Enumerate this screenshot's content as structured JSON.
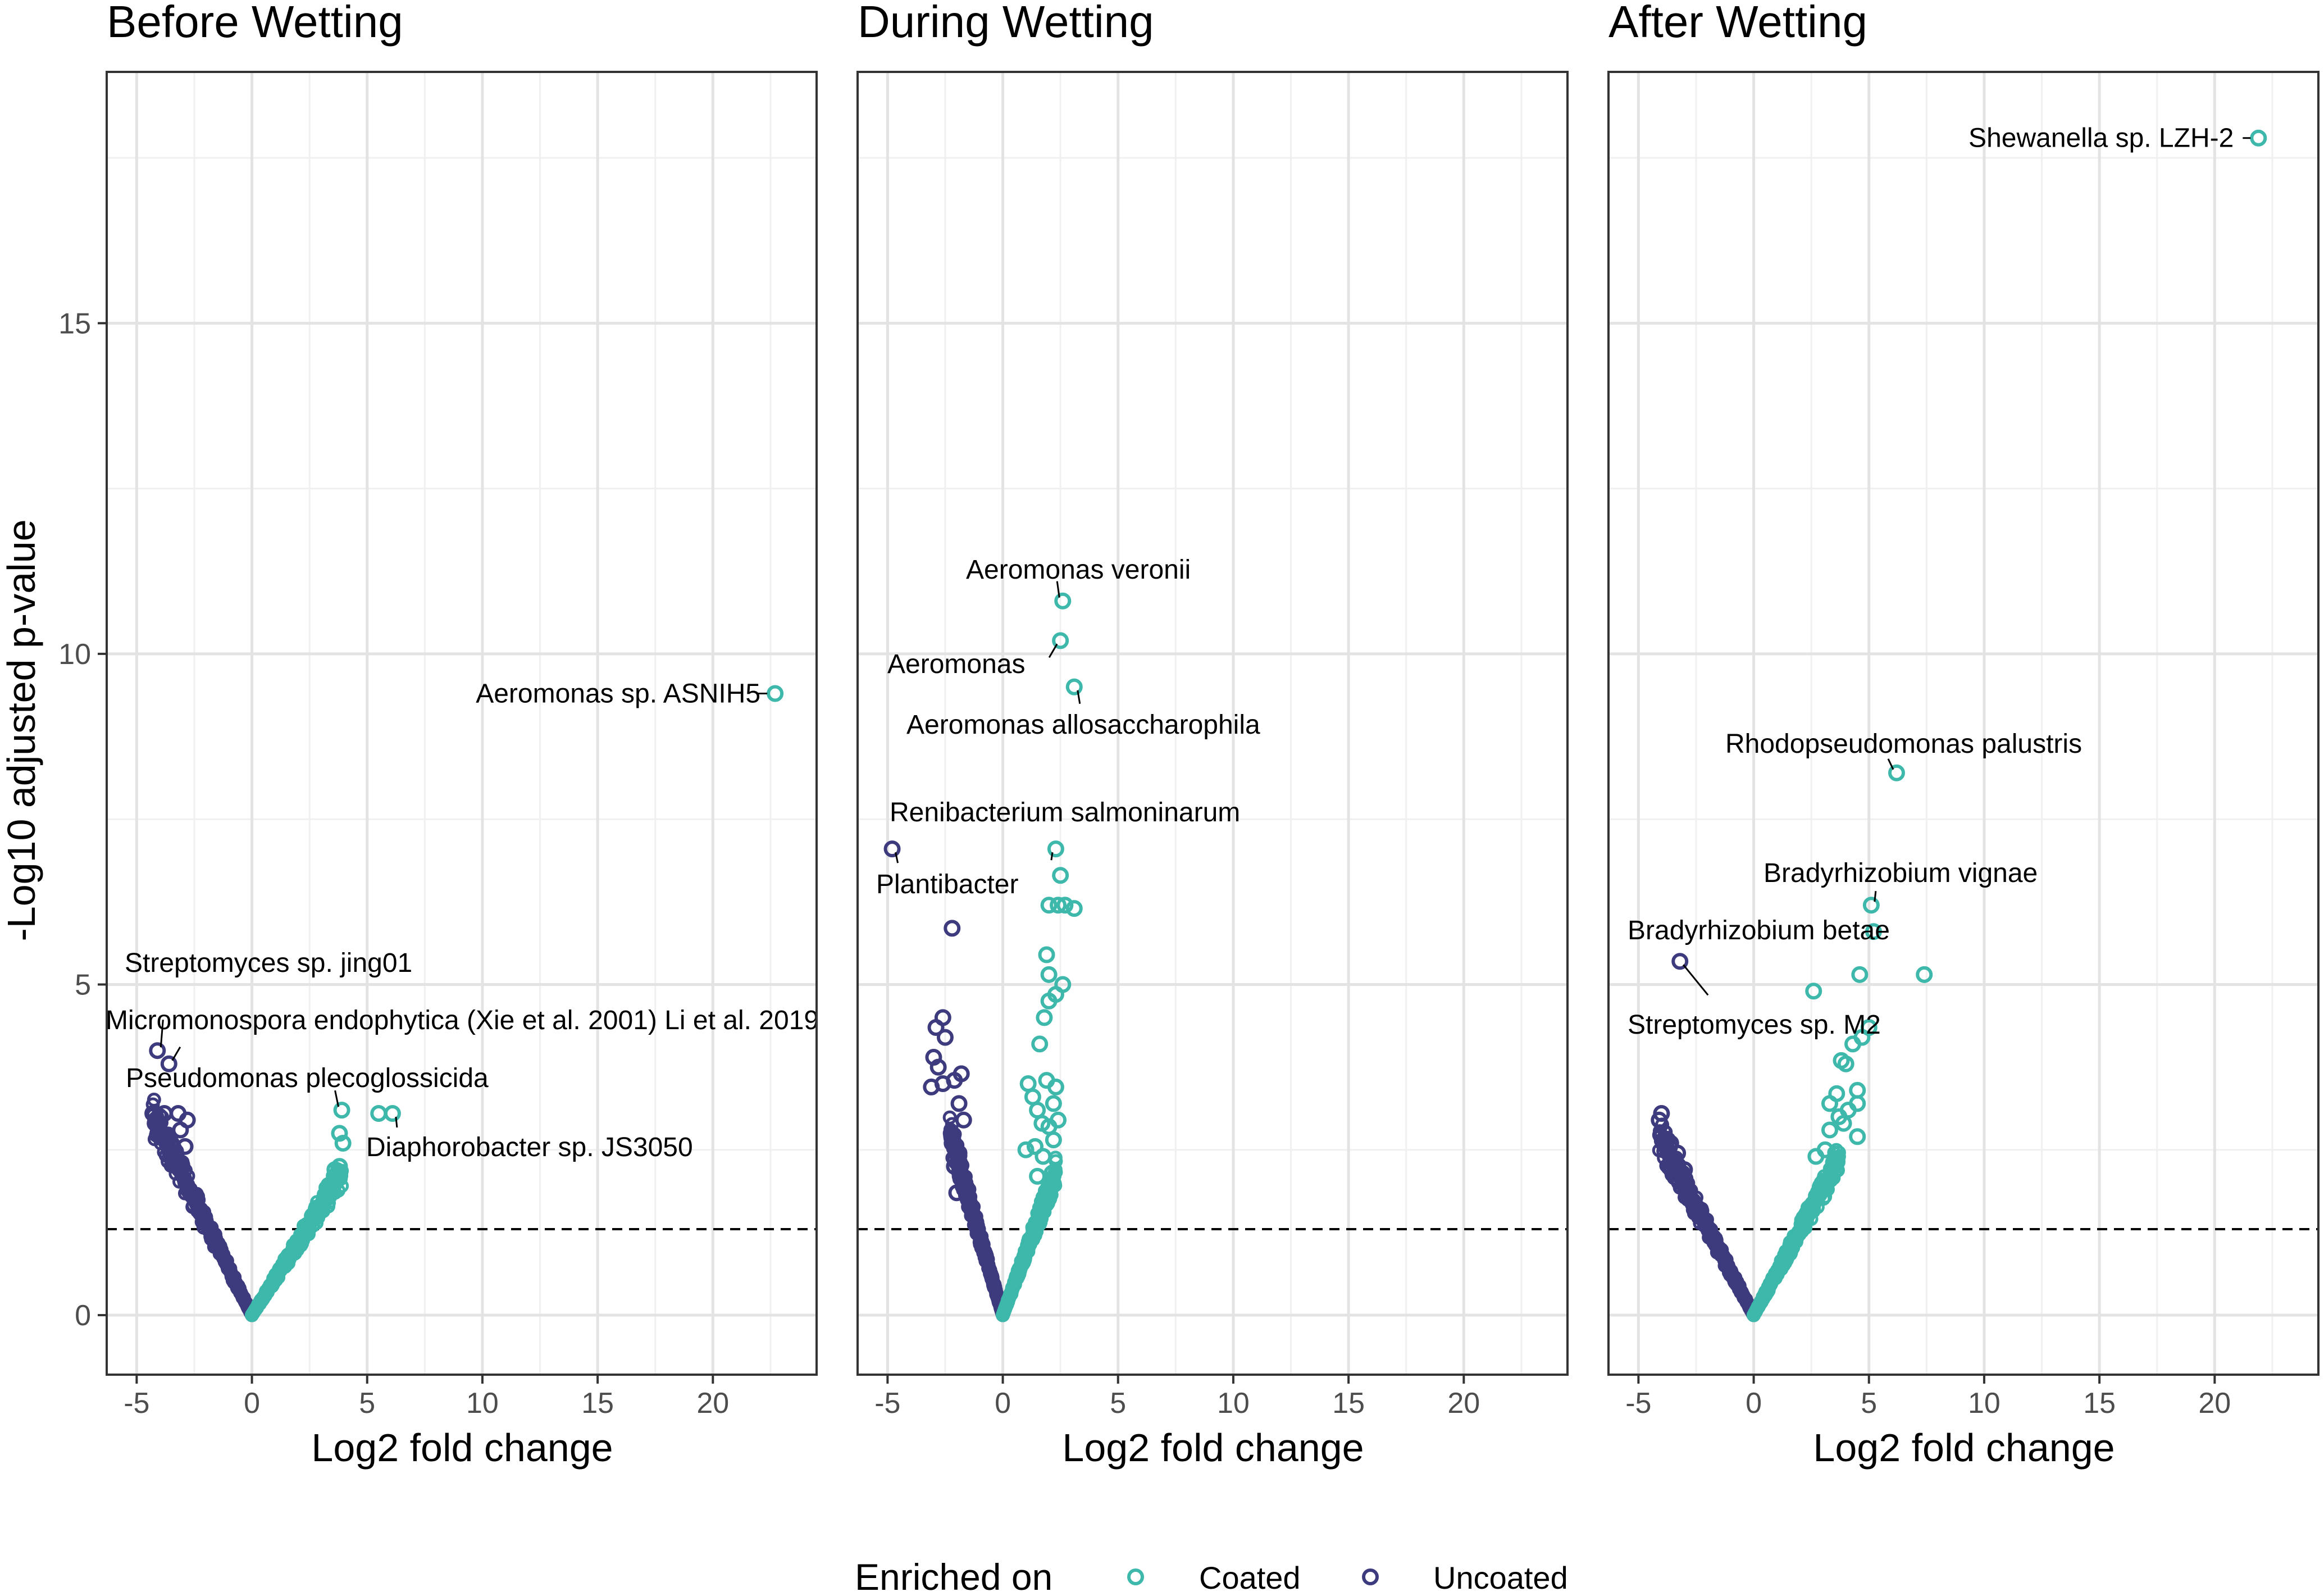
{
  "chart_data": {
    "type": "scatter",
    "subtype": "volcano",
    "shared": {
      "xlabel": "Log2 fold change",
      "ylabel": "-Log10 adjusted p-value",
      "xlim": [
        -6.3,
        24.5
      ],
      "ylim": [
        -0.9,
        18.8
      ],
      "x_ticks": [
        -5,
        0,
        5,
        10,
        15,
        20
      ],
      "x_tick_labels": [
        "-5",
        "0",
        "5",
        "10",
        "15",
        "20"
      ],
      "y_ticks": [
        0,
        5,
        10,
        15
      ],
      "y_tick_labels": [
        "0",
        "5",
        "10",
        "15"
      ],
      "threshold_y": 1.3,
      "threshold_style": "dashed",
      "grid": true
    },
    "legend": {
      "title": "Enriched on",
      "position": "bottom",
      "entries": [
        {
          "key": "coated",
          "label": "Coated",
          "color": "#3db8ab"
        },
        {
          "key": "uncoated",
          "label": "Uncoated",
          "color": "#3d3b7d"
        }
      ]
    },
    "panels": [
      {
        "title": "Before Wetting",
        "curves": {
          "uncoated_xmin": -4.3,
          "uncoated_a": 0.7,
          "coated_xmax": 3.9,
          "coated_a": 0.55
        },
        "highlights": [
          {
            "x": 22.7,
            "y": 9.4,
            "group": "coated",
            "label": "Aeromonas sp. ASNIH5"
          },
          {
            "x": -4.1,
            "y": 4.0,
            "group": "uncoated",
            "label": "Streptomyces sp. jing01"
          },
          {
            "x": -3.6,
            "y": 3.8,
            "group": "uncoated",
            "label": "Micromonospora endophytica (Xie et al. 2001) Li et al. 2019"
          },
          {
            "x": 3.9,
            "y": 3.1,
            "group": "coated",
            "label": "Pseudomonas plecoglossicida"
          },
          {
            "x": 6.1,
            "y": 3.05,
            "group": "coated",
            "label": "Diaphorobacter sp. JS3050"
          },
          {
            "x": 5.5,
            "y": 3.05,
            "group": "coated"
          },
          {
            "x": 3.8,
            "y": 2.75,
            "group": "coated"
          },
          {
            "x": 3.95,
            "y": 2.6,
            "group": "coated"
          },
          {
            "x": 3.6,
            "y": 2.2,
            "group": "coated"
          },
          {
            "x": 3.8,
            "y": 2.25,
            "group": "coated"
          },
          {
            "x": -4.3,
            "y": 3.05,
            "group": "uncoated"
          },
          {
            "x": -3.8,
            "y": 3.05,
            "group": "uncoated"
          },
          {
            "x": -3.2,
            "y": 3.05,
            "group": "uncoated"
          },
          {
            "x": -2.8,
            "y": 2.95,
            "group": "uncoated"
          },
          {
            "x": -4.2,
            "y": 2.9,
            "group": "uncoated"
          },
          {
            "x": -3.1,
            "y": 2.8,
            "group": "uncoated"
          },
          {
            "x": -2.9,
            "y": 2.55,
            "group": "uncoated"
          },
          {
            "x": -3.5,
            "y": 2.6,
            "group": "uncoated"
          },
          {
            "x": -4.0,
            "y": 2.7,
            "group": "uncoated"
          }
        ]
      },
      {
        "title": "During Wetting",
        "curves": {
          "uncoated_xmin": -2.3,
          "uncoated_a": 1.2,
          "coated_xmax": 2.3,
          "coated_a": 0.95
        },
        "highlights": [
          {
            "x": 2.6,
            "y": 10.8,
            "group": "coated",
            "label": "Aeromonas veronii"
          },
          {
            "x": 2.5,
            "y": 10.2,
            "group": "coated",
            "label": "Aeromonas"
          },
          {
            "x": 3.1,
            "y": 9.5,
            "group": "coated",
            "label": "Aeromonas allosaccharophila"
          },
          {
            "x": 2.3,
            "y": 7.05,
            "group": "coated",
            "label": "Renibacterium salmoninarum"
          },
          {
            "x": -4.8,
            "y": 7.05,
            "group": "uncoated",
            "label": "Plantibacter"
          },
          {
            "x": -2.2,
            "y": 5.85,
            "group": "uncoated"
          },
          {
            "x": 2.5,
            "y": 6.65,
            "group": "coated"
          },
          {
            "x": 2.0,
            "y": 6.2,
            "group": "coated"
          },
          {
            "x": 2.4,
            "y": 6.2,
            "group": "coated"
          },
          {
            "x": 2.7,
            "y": 6.2,
            "group": "coated"
          },
          {
            "x": 3.1,
            "y": 6.15,
            "group": "coated"
          },
          {
            "x": 1.9,
            "y": 5.45,
            "group": "coated"
          },
          {
            "x": 2.0,
            "y": 5.15,
            "group": "coated"
          },
          {
            "x": 2.3,
            "y": 4.85,
            "group": "coated"
          },
          {
            "x": 2.6,
            "y": 5.0,
            "group": "coated"
          },
          {
            "x": 2.0,
            "y": 4.75,
            "group": "coated"
          },
          {
            "x": 1.8,
            "y": 4.5,
            "group": "coated"
          },
          {
            "x": 1.6,
            "y": 4.1,
            "group": "coated"
          },
          {
            "x": 1.1,
            "y": 3.5,
            "group": "coated"
          },
          {
            "x": 1.3,
            "y": 3.3,
            "group": "coated"
          },
          {
            "x": 1.5,
            "y": 3.1,
            "group": "coated"
          },
          {
            "x": 1.9,
            "y": 3.55,
            "group": "coated"
          },
          {
            "x": 2.3,
            "y": 3.45,
            "group": "coated"
          },
          {
            "x": 2.2,
            "y": 3.2,
            "group": "coated"
          },
          {
            "x": 1.7,
            "y": 2.9,
            "group": "coated"
          },
          {
            "x": 2.0,
            "y": 2.85,
            "group": "coated"
          },
          {
            "x": 2.4,
            "y": 2.95,
            "group": "coated"
          },
          {
            "x": 2.2,
            "y": 2.65,
            "group": "coated"
          },
          {
            "x": 1.4,
            "y": 2.55,
            "group": "coated"
          },
          {
            "x": 1.0,
            "y": 2.5,
            "group": "coated"
          },
          {
            "x": 1.75,
            "y": 2.4,
            "group": "coated"
          },
          {
            "x": 1.5,
            "y": 2.1,
            "group": "coated"
          },
          {
            "x": -2.6,
            "y": 4.5,
            "group": "uncoated"
          },
          {
            "x": -2.9,
            "y": 4.35,
            "group": "uncoated"
          },
          {
            "x": -2.5,
            "y": 4.2,
            "group": "uncoated"
          },
          {
            "x": -3.0,
            "y": 3.9,
            "group": "uncoated"
          },
          {
            "x": -2.8,
            "y": 3.75,
            "group": "uncoated"
          },
          {
            "x": -1.8,
            "y": 3.65,
            "group": "uncoated"
          },
          {
            "x": -2.1,
            "y": 3.55,
            "group": "uncoated"
          },
          {
            "x": -2.6,
            "y": 3.5,
            "group": "uncoated"
          },
          {
            "x": -3.1,
            "y": 3.45,
            "group": "uncoated"
          },
          {
            "x": -1.9,
            "y": 3.2,
            "group": "uncoated"
          },
          {
            "x": -1.7,
            "y": 2.95,
            "group": "uncoated"
          },
          {
            "x": -2.2,
            "y": 2.6,
            "group": "uncoated"
          },
          {
            "x": -1.9,
            "y": 2.45,
            "group": "uncoated"
          },
          {
            "x": -2.1,
            "y": 2.25,
            "group": "uncoated"
          },
          {
            "x": -1.7,
            "y": 2.05,
            "group": "uncoated"
          },
          {
            "x": -2.0,
            "y": 1.85,
            "group": "uncoated"
          },
          {
            "x": -1.5,
            "y": 1.75,
            "group": "uncoated"
          }
        ]
      },
      {
        "title": "After Wetting",
        "curves": {
          "uncoated_xmin": -4.1,
          "uncoated_a": 0.66,
          "coated_xmax": 3.7,
          "coated_a": 0.64
        },
        "highlights": [
          {
            "x": 21.9,
            "y": 17.8,
            "group": "coated",
            "label": "Shewanella sp. LZH-2"
          },
          {
            "x": 6.2,
            "y": 8.2,
            "group": "coated",
            "label": "Rhodopseudomonas palustris"
          },
          {
            "x": 5.1,
            "y": 6.2,
            "group": "coated",
            "label": "Bradyrhizobium vignae"
          },
          {
            "x": 5.2,
            "y": 5.8,
            "group": "coated",
            "label": "Bradyrhizobium betae"
          },
          {
            "x": -3.2,
            "y": 5.35,
            "group": "uncoated",
            "label": "Streptomyces sp. M2"
          },
          {
            "x": 7.4,
            "y": 5.15,
            "group": "coated"
          },
          {
            "x": 4.6,
            "y": 5.15,
            "group": "coated"
          },
          {
            "x": 2.6,
            "y": 4.9,
            "group": "coated"
          },
          {
            "x": 5.0,
            "y": 4.35,
            "group": "coated"
          },
          {
            "x": 4.3,
            "y": 4.1,
            "group": "coated"
          },
          {
            "x": 4.7,
            "y": 4.2,
            "group": "coated"
          },
          {
            "x": 3.8,
            "y": 3.85,
            "group": "coated"
          },
          {
            "x": 4.0,
            "y": 3.8,
            "group": "coated"
          },
          {
            "x": 4.5,
            "y": 3.4,
            "group": "coated"
          },
          {
            "x": 3.6,
            "y": 3.35,
            "group": "coated"
          },
          {
            "x": 3.3,
            "y": 3.2,
            "group": "coated"
          },
          {
            "x": 4.1,
            "y": 3.1,
            "group": "coated"
          },
          {
            "x": 3.7,
            "y": 3.0,
            "group": "coated"
          },
          {
            "x": 4.5,
            "y": 3.2,
            "group": "coated"
          },
          {
            "x": 3.9,
            "y": 2.9,
            "group": "coated"
          },
          {
            "x": 3.3,
            "y": 2.8,
            "group": "coated"
          },
          {
            "x": 4.5,
            "y": 2.7,
            "group": "coated"
          },
          {
            "x": 3.1,
            "y": 2.5,
            "group": "coated"
          },
          {
            "x": 2.7,
            "y": 2.4,
            "group": "coated"
          },
          {
            "x": -4.0,
            "y": 3.05,
            "group": "uncoated"
          },
          {
            "x": -4.1,
            "y": 2.95,
            "group": "uncoated"
          },
          {
            "x": -3.6,
            "y": 2.6,
            "group": "uncoated"
          },
          {
            "x": -3.3,
            "y": 2.45,
            "group": "uncoated"
          },
          {
            "x": -3.0,
            "y": 2.2,
            "group": "uncoated"
          }
        ]
      }
    ]
  }
}
